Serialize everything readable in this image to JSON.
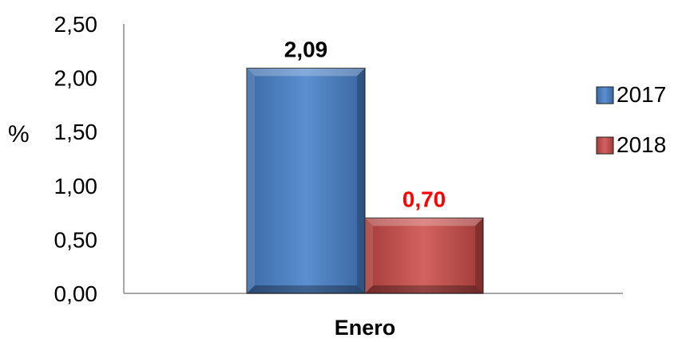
{
  "chart_data": {
    "type": "bar",
    "categories": [
      "Enero"
    ],
    "series": [
      {
        "name": "2017",
        "values": [
          2.09
        ],
        "value_labels": [
          "2,09"
        ],
        "color": "#4F81BD",
        "label_color": "#000000"
      },
      {
        "name": "2018",
        "values": [
          0.7
        ],
        "value_labels": [
          "0,70"
        ],
        "color": "#C0504D",
        "label_color": "#FF0000"
      }
    ],
    "ylabel": "%",
    "ylim": [
      0,
      2.5
    ],
    "yticks": [
      "0,00",
      "0,50",
      "1,00",
      "1,50",
      "2,00",
      "2,50"
    ],
    "grid": false,
    "legend_position": "right"
  }
}
